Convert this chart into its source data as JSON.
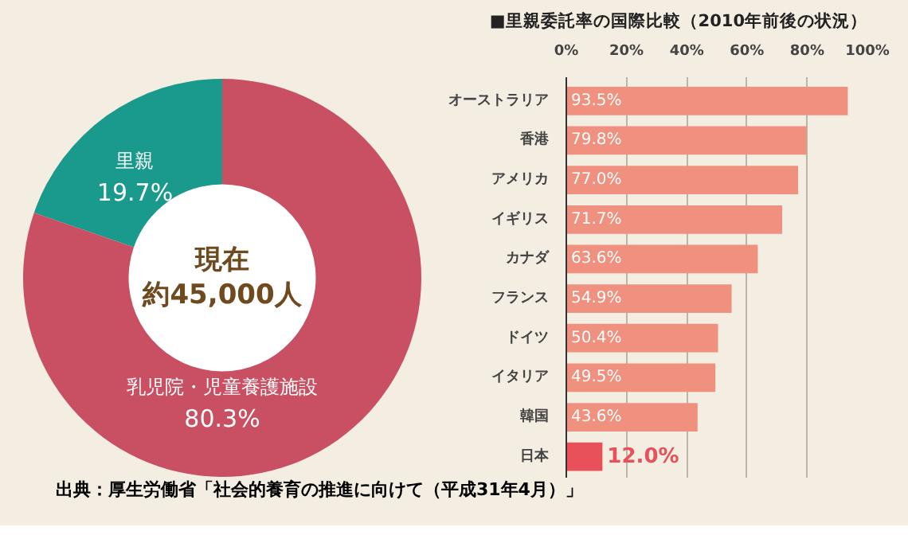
{
  "chart_data": [
    {
      "type": "donut",
      "categories": [
        "里親",
        "乳児院・児童養護施設"
      ],
      "values": [
        19.7,
        80.3
      ],
      "colors": [
        "#1a9a8c",
        "#c95062"
      ],
      "data_labels": true,
      "value_labels": [
        "19.7%",
        "80.3%"
      ],
      "annotations": [
        "現在",
        "約45,000人",
        "出典：厚生労働省「社会的養育の推進に向けて（平成31年4月）」"
      ]
    },
    {
      "type": "bar",
      "orientation": "horizontal",
      "title": "■里親委託率の国際比較（2010年前後の状況）",
      "categories": [
        "オーストラリア",
        "香港",
        "アメリカ",
        "イギリス",
        "カナダ",
        "フランス",
        "ドイツ",
        "イタリア",
        "韓国",
        "日本"
      ],
      "values": [
        93.5,
        79.8,
        77.0,
        71.7,
        63.6,
        54.9,
        50.4,
        49.5,
        43.6,
        12.0
      ],
      "colors": [
        "#f0907f",
        "#f0907f",
        "#f0907f",
        "#f0907f",
        "#f0907f",
        "#f0907f",
        "#f0907f",
        "#f0907f",
        "#f0907f",
        "#e8505a"
      ],
      "value_labels": [
        "93.5%",
        "79.8%",
        "77.0%",
        "71.7%",
        "63.6%",
        "54.9%",
        "50.4%",
        "49.5%",
        "43.6%",
        "12.0%"
      ],
      "xlim": [
        0,
        100
      ],
      "xticks": [
        {
          "value": 0,
          "label": "0%"
        },
        {
          "value": 20,
          "label": "20%"
        },
        {
          "value": 40,
          "label": "40%"
        },
        {
          "value": 60,
          "label": "60%"
        },
        {
          "value": 80,
          "label": "80%"
        },
        {
          "value": 100,
          "label": "100%"
        }
      ],
      "grid": "x"
    }
  ]
}
